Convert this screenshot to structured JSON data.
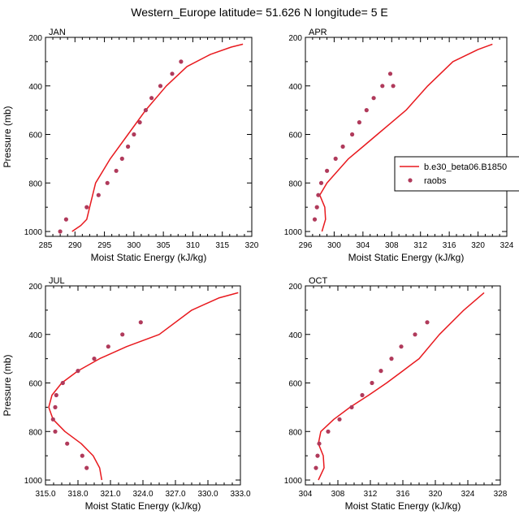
{
  "figure": {
    "title": "Western_Europe  latitude= 51.626 N longitude= 5 E",
    "colors": {
      "model_line": "#e8191e",
      "obs_marker": "#b03a5b",
      "axis": "#000000"
    },
    "legend": {
      "placement": "right of APR panel",
      "model_label": "b.e30_beta06.B1850",
      "obs_label": "raobs"
    }
  },
  "chart_data": [
    {
      "type": "line",
      "panel": "JAN",
      "title": "JAN",
      "xlabel": "Moist Static Energy (kJ/kg)",
      "ylabel": "Pressure (mb)",
      "xlim": [
        285,
        320
      ],
      "ylim": [
        1020,
        200
      ],
      "y_reversed": true,
      "xticks": [
        "285",
        "290",
        "295",
        "300",
        "305",
        "310",
        "315",
        "320"
      ],
      "yticks": [
        "200",
        "400",
        "600",
        "800",
        "1000"
      ],
      "series": [
        {
          "name": "b.e30_beta06.B1850",
          "kind": "line",
          "x": [
            289.5,
            291.0,
            292.0,
            292.5,
            293.5,
            296.0,
            299.0,
            302.0,
            305.5,
            309.0,
            313.0,
            316.5,
            318.5
          ],
          "y": [
            1000,
            975,
            950,
            900,
            800,
            700,
            600,
            500,
            400,
            320,
            270,
            240,
            228
          ]
        },
        {
          "name": "raobs",
          "kind": "scatter",
          "x": [
            287.5,
            288.5,
            292.0,
            294.0,
            295.5,
            297.0,
            298.0,
            299.0,
            300.0,
            301.0,
            302.0,
            303.0,
            304.5,
            306.5,
            308.0
          ],
          "y": [
            1000,
            950,
            900,
            850,
            800,
            750,
            700,
            650,
            600,
            550,
            500,
            450,
            400,
            350,
            300
          ]
        }
      ]
    },
    {
      "type": "line",
      "panel": "APR",
      "title": "APR",
      "xlabel": "Moist Static Energy (kJ/kg)",
      "ylabel": "",
      "xlim": [
        296,
        324
      ],
      "ylim": [
        1020,
        200
      ],
      "y_reversed": true,
      "xticks": [
        "296",
        "300",
        "304",
        "308",
        "312",
        "316",
        "320",
        "324"
      ],
      "yticks": [
        "200",
        "400",
        "600",
        "800",
        "1000"
      ],
      "series": [
        {
          "name": "b.e30_beta06.B1850",
          "kind": "line",
          "x": [
            298.3,
            298.8,
            298.7,
            298.0,
            299.0,
            300.5,
            302.0,
            304.0,
            306.0,
            308.0,
            310.0,
            313.0,
            316.5,
            320.0,
            322.0
          ],
          "y": [
            1000,
            950,
            900,
            850,
            800,
            750,
            700,
            650,
            600,
            550,
            500,
            400,
            300,
            250,
            228
          ]
        },
        {
          "name": "raobs",
          "kind": "scatter",
          "x": [
            297.3,
            297.6,
            297.8,
            298.2,
            299.0,
            300.2,
            301.2,
            302.5,
            303.5,
            304.5,
            305.5,
            306.7,
            307.8,
            308.2
          ],
          "y": [
            950,
            900,
            850,
            800,
            750,
            700,
            650,
            600,
            550,
            500,
            450,
            400,
            350,
            400
          ]
        }
      ]
    },
    {
      "type": "line",
      "panel": "JUL",
      "title": "JUL",
      "xlabel": "Moist Static Energy (kJ/kg)",
      "ylabel": "Pressure (mb)",
      "xlim": [
        315.0,
        333.0
      ],
      "ylim": [
        1020,
        200
      ],
      "y_reversed": true,
      "xticks": [
        "315.0",
        "318.0",
        "321.0",
        "324.0",
        "327.0",
        "330.0",
        "333.0"
      ],
      "yticks": [
        "200",
        "400",
        "600",
        "800",
        "1000"
      ],
      "series": [
        {
          "name": "b.e30_beta06.B1850",
          "kind": "line",
          "x": [
            320.2,
            320.0,
            319.4,
            318.3,
            316.8,
            315.7,
            315.3,
            315.6,
            316.5,
            318.0,
            320.0,
            322.5,
            325.5,
            328.5,
            331.0,
            332.8
          ],
          "y": [
            1000,
            950,
            900,
            850,
            800,
            750,
            700,
            650,
            600,
            550,
            500,
            450,
            400,
            300,
            250,
            228
          ]
        },
        {
          "name": "raobs",
          "kind": "scatter",
          "x": [
            318.8,
            318.4,
            317.0,
            315.9,
            315.7,
            315.9,
            316.0,
            316.6,
            318.0,
            319.5,
            320.8,
            322.1,
            323.8
          ],
          "y": [
            950,
            900,
            850,
            800,
            750,
            700,
            650,
            600,
            550,
            500,
            450,
            400,
            350
          ]
        }
      ]
    },
    {
      "type": "line",
      "panel": "OCT",
      "title": "OCT",
      "xlabel": "Moist Static Energy (kJ/kg)",
      "ylabel": "",
      "xlim": [
        304,
        328
      ],
      "ylim": [
        1020,
        200
      ],
      "y_reversed": true,
      "xticks": [
        "304",
        "308",
        "312",
        "316",
        "320",
        "324",
        "328"
      ],
      "yticks": [
        "200",
        "400",
        "600",
        "800",
        "1000"
      ],
      "series": [
        {
          "name": "b.e30_beta06.B1850",
          "kind": "line",
          "x": [
            305.6,
            306.3,
            306.2,
            305.6,
            305.9,
            307.5,
            309.5,
            311.8,
            314.0,
            316.0,
            318.0,
            320.5,
            323.5,
            326.0
          ],
          "y": [
            1000,
            950,
            900,
            850,
            800,
            750,
            700,
            650,
            600,
            550,
            500,
            400,
            300,
            228
          ]
        },
        {
          "name": "raobs",
          "kind": "scatter",
          "x": [
            305.3,
            305.5,
            305.7,
            306.8,
            308.2,
            309.7,
            311.0,
            312.2,
            313.3,
            314.6,
            315.8,
            317.5,
            319.0
          ],
          "y": [
            950,
            900,
            850,
            800,
            750,
            700,
            650,
            600,
            550,
            500,
            450,
            400,
            350
          ]
        }
      ]
    }
  ]
}
